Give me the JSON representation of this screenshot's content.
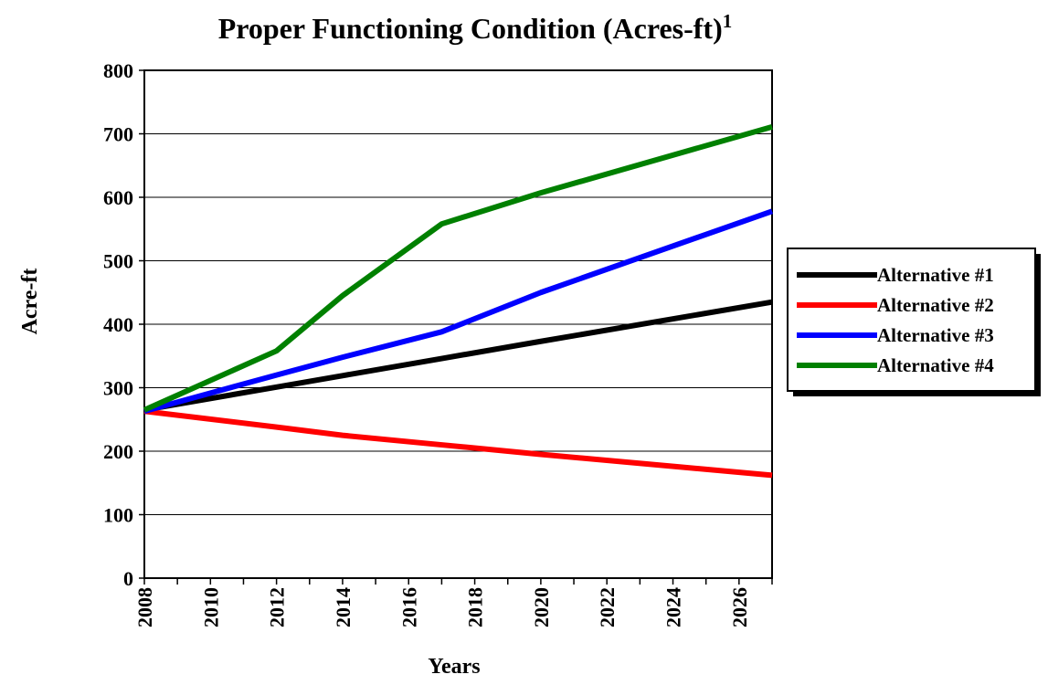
{
  "chart_data": {
    "type": "line",
    "title": "Proper Functioning Condition (Acres-ft)",
    "title_note": "1",
    "x_label": "Years",
    "y_label": "Acre-ft",
    "x": [
      2008,
      2012,
      2014,
      2017,
      2020,
      2027
    ],
    "series": [
      {
        "name": "Alternative #1",
        "color": "#000000",
        "values": [
          265,
          301,
          319,
          346,
          373,
          435
        ]
      },
      {
        "name": "Alternative #2",
        "color": "#ff0000",
        "values": [
          263,
          238,
          225,
          210,
          195,
          162
        ]
      },
      {
        "name": "Alternative #3",
        "color": "#0000ff",
        "values": [
          263,
          320,
          348,
          388,
          450,
          578
        ]
      },
      {
        "name": "Alternative #4",
        "color": "#008000",
        "values": [
          265,
          358,
          445,
          558,
          607,
          711
        ]
      }
    ],
    "xlim": [
      2008,
      2027
    ],
    "xticks": [
      2008,
      2010,
      2012,
      2014,
      2016,
      2018,
      2020,
      2022,
      2024,
      2026
    ],
    "xminorticks": [
      2009,
      2011,
      2013,
      2015,
      2017,
      2019,
      2021,
      2023,
      2025,
      2027
    ],
    "ylim": [
      0,
      800
    ],
    "yticks": [
      0,
      100,
      200,
      300,
      400,
      500,
      600,
      700,
      800
    ],
    "grid": true,
    "legend": "right"
  }
}
